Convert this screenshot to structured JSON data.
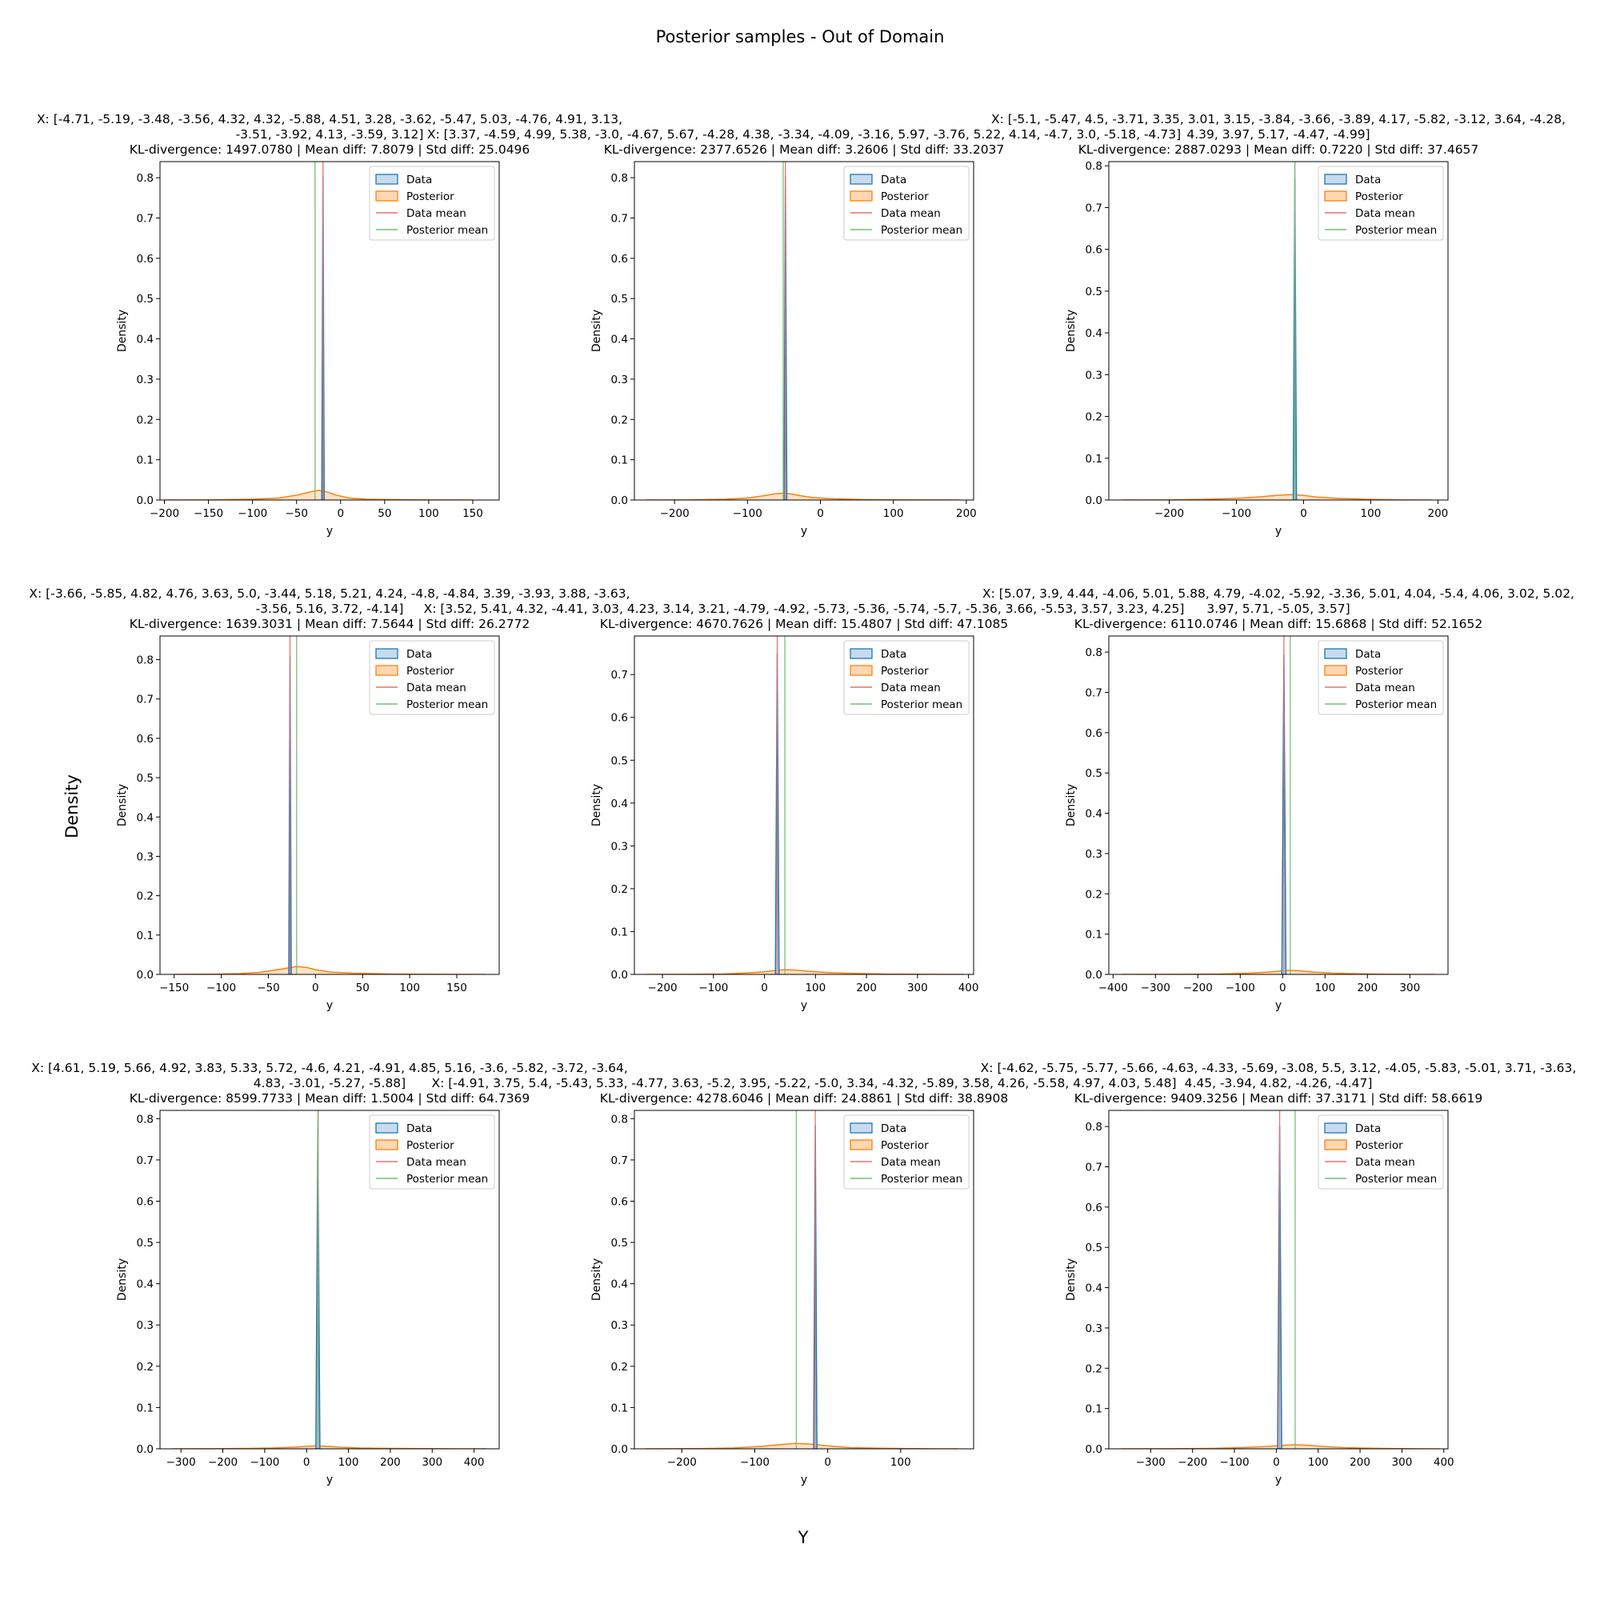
{
  "figure": {
    "suptitle": "Posterior samples - Out of Domain",
    "supxlabel": "Y",
    "supylabel": "Density"
  },
  "legend_labels": [
    "Data",
    "Posterior",
    "Data mean",
    "Posterior mean"
  ],
  "colors": {
    "data": "#1f77b4",
    "data_fill": "#c6dbef",
    "posterior": "#ff7f0e",
    "posterior_fill": "#ffd8b1",
    "data_mean": "#e8746a",
    "posterior_mean": "#77c077"
  },
  "chart_data": [
    {
      "type": "area",
      "title": [
        "X: [-4.71, -5.19, -3.48, -3.56, 4.32, 4.32, -5.88, 4.51, 3.28, -3.62, -5.47, 5.03, -4.76, 4.91, 3.13,",
        "-3.51, -3.92, 4.13, -3.59, 3.12]",
        "KL-divergence: 1497.0780 | Mean diff: 7.8079 | Std diff: 25.0496"
      ],
      "xlabel": "y",
      "ylabel": "Density",
      "legend": "top-right",
      "xlim": [
        -205,
        180
      ],
      "ylim": [
        0,
        0.84
      ],
      "xticks": [
        -200,
        -150,
        -100,
        -50,
        0,
        50,
        100,
        150
      ],
      "yticks": [
        0.0,
        0.1,
        0.2,
        0.3,
        0.4,
        0.5,
        0.6,
        0.7,
        0.8
      ],
      "data_mean": -20,
      "posterior_mean": -29,
      "data_peak": {
        "x": -20,
        "height": 0.805,
        "width": 3
      },
      "posterior_curve": {
        "x": [
          -200,
          -150,
          -100,
          -70,
          -50,
          -35,
          -25,
          -15,
          -5,
          10,
          30,
          60,
          100,
          150
        ],
        "y": [
          0,
          0.0003,
          0.002,
          0.005,
          0.012,
          0.02,
          0.024,
          0.02,
          0.012,
          0.005,
          0.002,
          0.001,
          0.0003,
          0
        ]
      }
    },
    {
      "type": "area",
      "title": [
        "X: [3.37, -4.59, 4.99, 5.38, -3.0, -4.67, 5.67, -4.28, 4.38, -3.34, -4.09, -3.16, 5.97, -3.76, 5.22, 4.14, -4.7, 3.0, -5.18, -4.73]",
        "KL-divergence: 2377.6526 | Mean diff: 3.2606 | Std diff: 33.2037"
      ],
      "xlabel": "y",
      "ylabel": "Density",
      "legend": "top-right",
      "xlim": [
        -255,
        210
      ],
      "ylim": [
        0,
        0.84
      ],
      "xticks": [
        -200,
        -100,
        0,
        100,
        200
      ],
      "yticks": [
        0.0,
        0.1,
        0.2,
        0.3,
        0.4,
        0.5,
        0.6,
        0.7,
        0.8
      ],
      "data_mean": -48,
      "posterior_mean": -51,
      "data_peak": {
        "x": -48,
        "height": 0.805,
        "width": 3.5
      },
      "posterior_curve": {
        "x": [
          -240,
          -180,
          -130,
          -100,
          -80,
          -60,
          -50,
          -40,
          -25,
          -10,
          20,
          60,
          120,
          190
        ],
        "y": [
          0,
          0.0003,
          0.002,
          0.005,
          0.01,
          0.016,
          0.017,
          0.015,
          0.01,
          0.006,
          0.003,
          0.001,
          0.0003,
          0
        ]
      }
    },
    {
      "type": "area",
      "title": [
        "X: [-5.1, -5.47, 4.5, -3.71, 3.35, 3.01, 3.15, -3.84, -3.66, -3.89, 4.17, -5.82, -3.12, 3.64, -4.28,",
        "4.39, 3.97, 5.17, -4.47, -4.99]",
        "KL-divergence: 2887.0293 | Mean diff: 0.7220 | Std diff: 37.4657"
      ],
      "xlabel": "y",
      "ylabel": "Density",
      "legend": "top-right",
      "xlim": [
        -290,
        215
      ],
      "ylim": [
        0,
        0.81
      ],
      "xticks": [
        -200,
        -100,
        0,
        100,
        200
      ],
      "yticks": [
        0.0,
        0.1,
        0.2,
        0.3,
        0.4,
        0.5,
        0.6,
        0.7,
        0.8
      ],
      "data_mean": -13,
      "posterior_mean": -13,
      "data_peak": {
        "x": -13,
        "height": 0.77,
        "width": 4
      },
      "posterior_curve": {
        "x": [
          -270,
          -200,
          -140,
          -100,
          -70,
          -40,
          -20,
          -10,
          0,
          20,
          50,
          90,
          140,
          190
        ],
        "y": [
          0,
          0.0003,
          0.002,
          0.004,
          0.007,
          0.011,
          0.013,
          0.012,
          0.011,
          0.007,
          0.004,
          0.002,
          0.0003,
          0
        ]
      }
    },
    {
      "type": "area",
      "title": [
        "X: [-3.66, -5.85, 4.82, 4.76, 3.63, 5.0, -3.44, 5.18, 5.21, 4.24, -4.8, -4.84, 3.39, -3.93, 3.88, -3.63,",
        "-3.56, 5.16, 3.72, -4.14]",
        "KL-divergence: 1639.3031 | Mean diff: 7.5644 | Std diff: 26.2772"
      ],
      "xlabel": "y",
      "ylabel": "Density",
      "legend": "top-right",
      "xlim": [
        -165,
        195
      ],
      "ylim": [
        0,
        0.86
      ],
      "xticks": [
        -150,
        -100,
        -50,
        0,
        50,
        100,
        150
      ],
      "yticks": [
        0.0,
        0.1,
        0.2,
        0.3,
        0.4,
        0.5,
        0.6,
        0.7,
        0.8
      ],
      "data_mean": -27,
      "posterior_mean": -20,
      "data_peak": {
        "x": -27,
        "height": 0.81,
        "width": 3
      },
      "posterior_curve": {
        "x": [
          -150,
          -110,
          -80,
          -60,
          -40,
          -30,
          -20,
          -10,
          0,
          15,
          40,
          80,
          130,
          180
        ],
        "y": [
          0,
          0.0005,
          0.002,
          0.005,
          0.012,
          0.016,
          0.02,
          0.018,
          0.012,
          0.006,
          0.003,
          0.001,
          0.0003,
          0
        ]
      }
    },
    {
      "type": "area",
      "title": [
        "X: [3.52, 5.41, 4.32, -4.41, 3.03, 4.23, 3.14, 3.21, -4.79, -4.92, -5.73, -5.36, -5.74, -5.7, -5.36, 3.66, -5.53, 3.57, 3.23, 4.25]",
        "KL-divergence: 4670.7626 | Mean diff: 15.4807 | Std diff: 47.1085"
      ],
      "xlabel": "y",
      "ylabel": "Density",
      "legend": "top-right",
      "xlim": [
        -255,
        410
      ],
      "ylim": [
        0,
        0.79
      ],
      "xticks": [
        -200,
        -100,
        0,
        100,
        200,
        300,
        400
      ],
      "yticks": [
        0.0,
        0.1,
        0.2,
        0.3,
        0.4,
        0.5,
        0.6,
        0.7
      ],
      "data_mean": 25,
      "posterior_mean": 40,
      "data_peak": {
        "x": 25,
        "height": 0.75,
        "width": 4.5
      },
      "posterior_curve": {
        "x": [
          -230,
          -150,
          -80,
          -40,
          0,
          20,
          40,
          60,
          90,
          130,
          180,
          250,
          320,
          390
        ],
        "y": [
          0,
          0.0003,
          0.001,
          0.003,
          0.006,
          0.009,
          0.011,
          0.01,
          0.007,
          0.004,
          0.002,
          0.0008,
          0.0002,
          0
        ]
      }
    },
    {
      "type": "area",
      "title": [
        "X: [5.07, 3.9, 4.44, -4.06, 5.01, 5.88, 4.79, -4.02, -5.92, -3.36, 5.01, 4.04, -5.4, 4.06, 3.02, 5.02,",
        "3.97, 5.71, -5.05, 3.57]",
        "KL-divergence: 6110.0746 | Mean diff: 15.6868 | Std diff: 52.1652"
      ],
      "xlabel": "y",
      "ylabel": "Density",
      "legend": "top-right",
      "xlim": [
        -410,
        390
      ],
      "ylim": [
        0,
        0.84
      ],
      "xticks": [
        -400,
        -300,
        -200,
        -100,
        0,
        100,
        200,
        300
      ],
      "yticks": [
        0.0,
        0.1,
        0.2,
        0.3,
        0.4,
        0.5,
        0.6,
        0.7,
        0.8
      ],
      "data_mean": 3,
      "posterior_mean": 18,
      "data_peak": {
        "x": 3,
        "height": 0.795,
        "width": 5
      },
      "posterior_curve": {
        "x": [
          -380,
          -250,
          -150,
          -80,
          -30,
          0,
          20,
          40,
          70,
          120,
          180,
          250,
          320,
          360
        ],
        "y": [
          0,
          0.0003,
          0.001,
          0.003,
          0.006,
          0.009,
          0.01,
          0.009,
          0.006,
          0.003,
          0.0015,
          0.0005,
          0.0001,
          0
        ]
      }
    },
    {
      "type": "area",
      "title": [
        "X: [4.61, 5.19, 5.66, 4.92, 3.83, 5.33, 5.72, -4.6, 4.21, -4.91, 4.85, 5.16, -3.6, -5.82, -3.72, -3.64,",
        "4.83, -3.01, -5.27, -5.88]",
        "KL-divergence: 8599.7733 | Mean diff: 1.5004 | Std diff: 64.7369"
      ],
      "xlabel": "y",
      "ylabel": "Density",
      "legend": "top-right",
      "xlim": [
        -350,
        460
      ],
      "ylim": [
        0,
        0.82
      ],
      "xticks": [
        -300,
        -200,
        -100,
        0,
        100,
        200,
        300,
        400
      ],
      "yticks": [
        0.0,
        0.1,
        0.2,
        0.3,
        0.4,
        0.5,
        0.6,
        0.7,
        0.8
      ],
      "data_mean": 27,
      "posterior_mean": 28,
      "data_peak": {
        "x": 27,
        "height": 0.78,
        "width": 5
      },
      "posterior_curve": {
        "x": [
          -320,
          -220,
          -140,
          -80,
          -30,
          0,
          25,
          50,
          80,
          130,
          200,
          280,
          360,
          430
        ],
        "y": [
          0,
          0.0003,
          0.001,
          0.002,
          0.004,
          0.006,
          0.007,
          0.006,
          0.004,
          0.002,
          0.001,
          0.0004,
          0.0001,
          0
        ]
      }
    },
    {
      "type": "area",
      "title": [
        "X: [-4.91, 3.75, 5.4, -5.43, 5.33, -4.77, 3.63, -5.2, 3.95, -5.22, -5.0, 3.34, -4.32, -5.89, 3.58, 4.26, -5.58, 4.97, 4.03, 5.48]",
        "KL-divergence: 4278.6046 | Mean diff: 24.8861 | Std diff: 38.8908"
      ],
      "xlabel": "y",
      "ylabel": "Density",
      "legend": "top-right",
      "xlim": [
        -265,
        200
      ],
      "ylim": [
        0,
        0.82
      ],
      "xticks": [
        -200,
        -100,
        0,
        100
      ],
      "yticks": [
        0.0,
        0.1,
        0.2,
        0.3,
        0.4,
        0.5,
        0.6,
        0.7,
        0.8
      ],
      "data_mean": -17,
      "posterior_mean": -43,
      "data_peak": {
        "x": -17,
        "height": 0.785,
        "width": 4
      },
      "posterior_curve": {
        "x": [
          -250,
          -180,
          -130,
          -90,
          -60,
          -45,
          -30,
          -15,
          0,
          30,
          70,
          110,
          150,
          180
        ],
        "y": [
          0,
          0.0004,
          0.002,
          0.006,
          0.011,
          0.013,
          0.012,
          0.01,
          0.007,
          0.003,
          0.0015,
          0.0005,
          0.0001,
          0
        ]
      }
    },
    {
      "type": "area",
      "title": [
        "X: [-4.62, -5.75, -5.77, -5.66, -4.63, -4.33, -5.69, -3.08, 5.5, 3.12, -4.05, -5.83, -5.01, 3.71, -3.63,",
        "4.45, -3.94, 4.82, -4.26, -4.47]",
        "KL-divergence: 9409.3256 | Mean diff: 37.3171 | Std diff: 58.6619"
      ],
      "xlabel": "y",
      "ylabel": "Density",
      "legend": "top-right",
      "xlim": [
        -400,
        410
      ],
      "ylim": [
        0,
        0.84
      ],
      "xticks": [
        -300,
        -200,
        -100,
        0,
        100,
        200,
        300,
        400
      ],
      "yticks": [
        0.0,
        0.1,
        0.2,
        0.3,
        0.4,
        0.5,
        0.6,
        0.7,
        0.8
      ],
      "data_mean": 8,
      "posterior_mean": 45,
      "data_peak": {
        "x": 8,
        "height": 0.8,
        "width": 5
      },
      "posterior_curve": {
        "x": [
          -370,
          -250,
          -150,
          -80,
          -20,
          20,
          45,
          70,
          110,
          160,
          220,
          290,
          350,
          390
        ],
        "y": [
          0,
          0.0003,
          0.001,
          0.003,
          0.006,
          0.009,
          0.01,
          0.009,
          0.006,
          0.003,
          0.0015,
          0.0005,
          0.0001,
          0
        ]
      }
    }
  ]
}
